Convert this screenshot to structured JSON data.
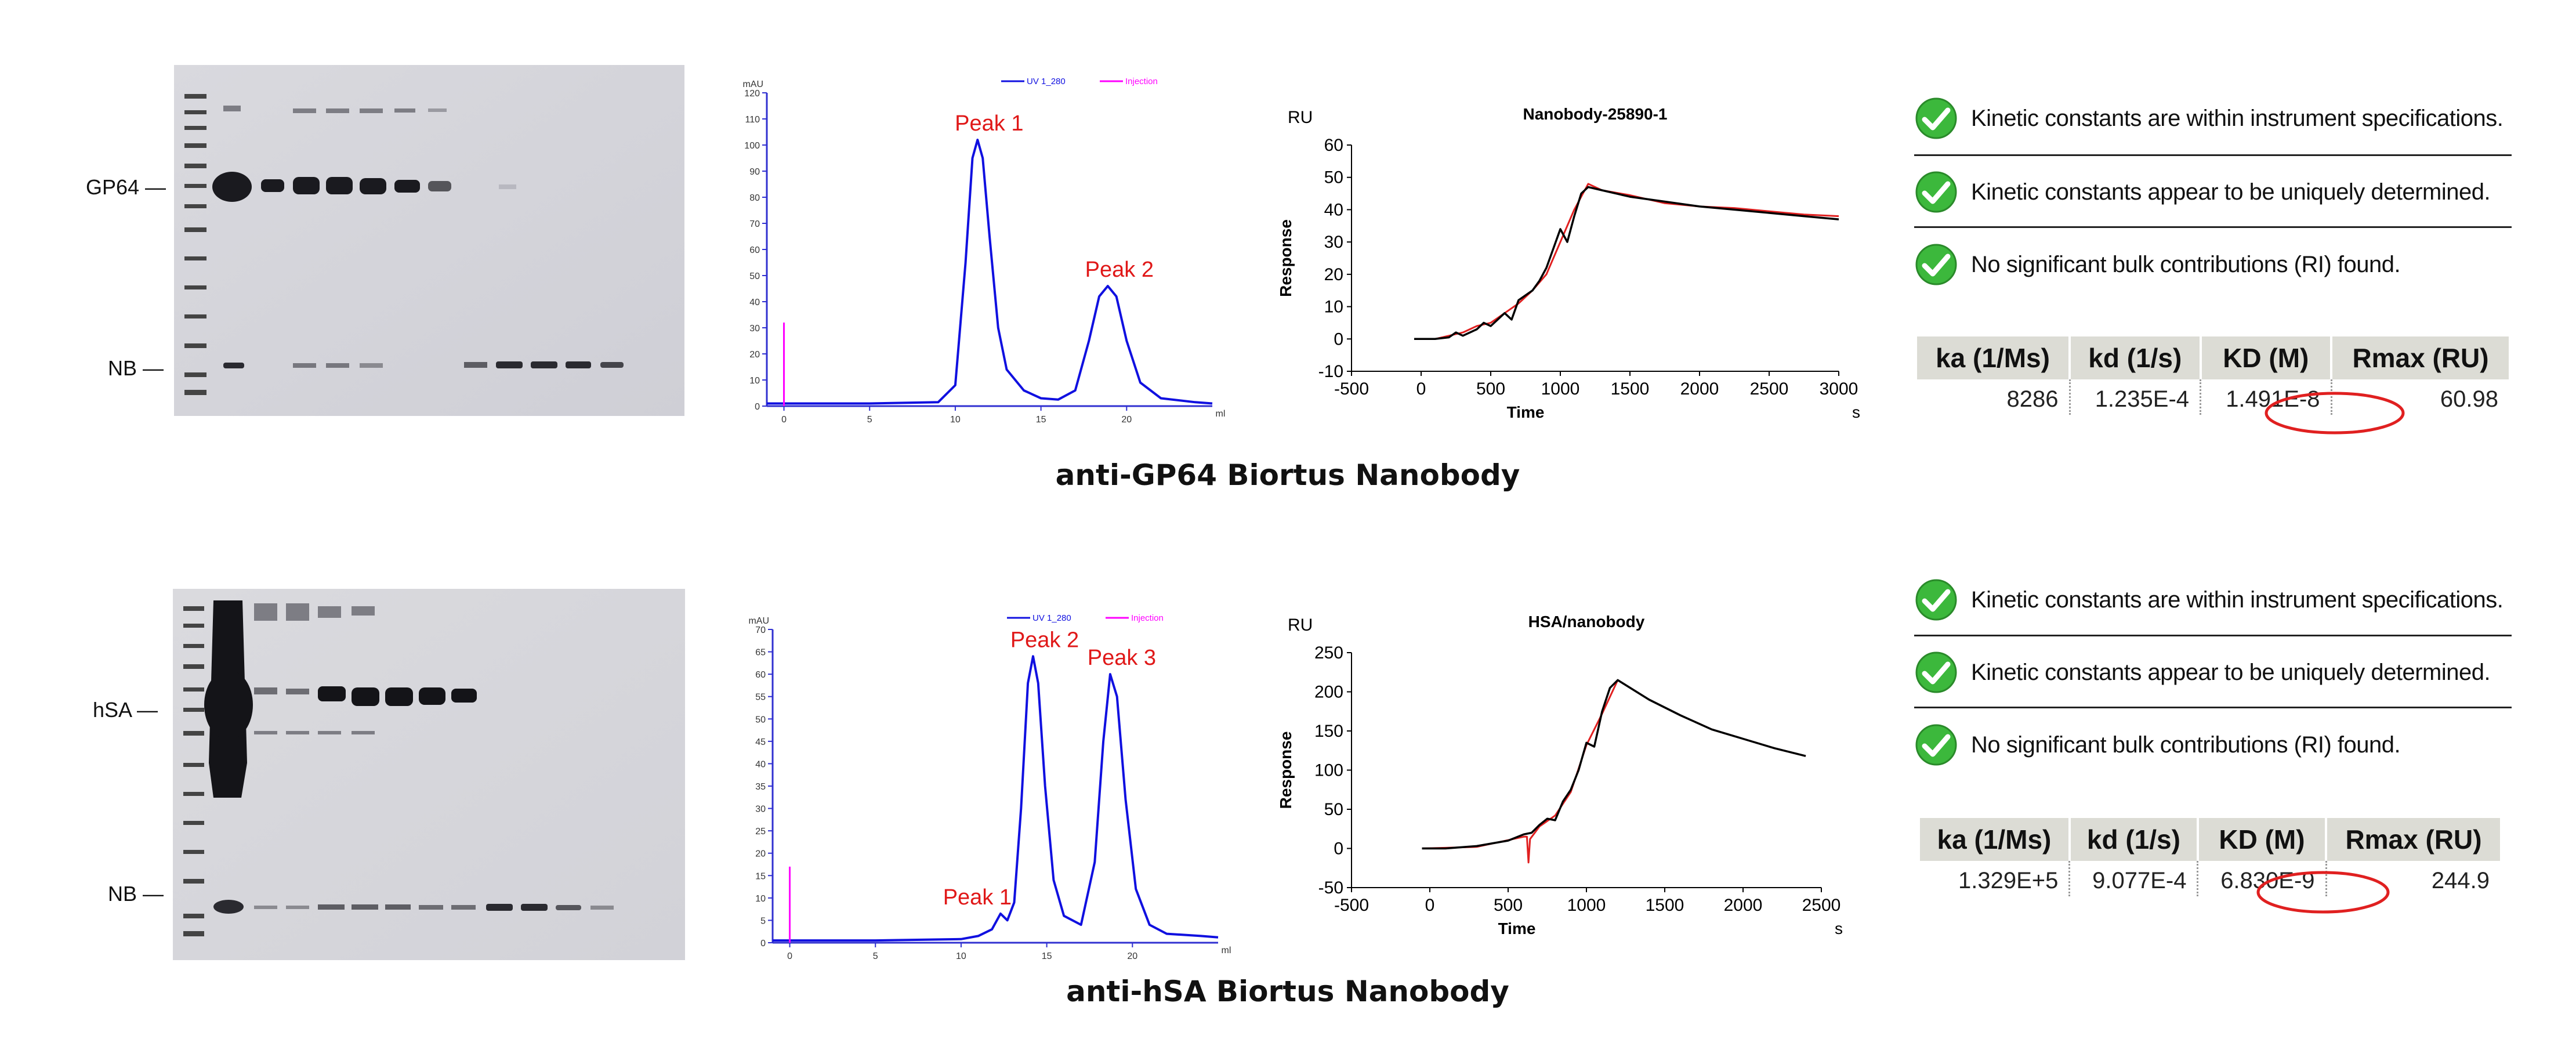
{
  "panels": [
    {
      "id": "gp64",
      "gel": {
        "band_labels": [
          "GP64 —",
          "NB —"
        ]
      },
      "sec": {
        "legend": [
          "UV 1_280",
          "Injection"
        ],
        "ylabel": "mAU",
        "xlabel": "ml",
        "peaks": [
          "Peak 1",
          "Peak 2"
        ]
      },
      "spr": {
        "title": "Nanobody-25890-1",
        "ylabel_unit": "RU",
        "ylabel": "Response",
        "xlabel": "Time",
        "xunit": "s"
      },
      "checks": [
        "Kinetic constants are within instrument specifications.",
        "Kinetic constants appear to be uniquely determined.",
        "No significant bulk contributions (RI) found."
      ],
      "table": {
        "headers": [
          "ka (1/Ms)",
          "kd (1/s)",
          "KD (M)",
          "Rmax (RU)"
        ],
        "values": [
          "8286",
          "1.235E-4",
          "1.491E-8",
          "60.98"
        ]
      },
      "caption": "anti-GP64 Biortus Nanobody"
    },
    {
      "id": "hsa",
      "gel": {
        "band_labels": [
          "hSA —",
          "NB —"
        ]
      },
      "sec": {
        "legend": [
          "UV 1_280",
          "Injection"
        ],
        "ylabel": "mAU",
        "xlabel": "ml",
        "peaks": [
          "Peak 1",
          "Peak 2",
          "Peak 3"
        ]
      },
      "spr": {
        "title": "HSA/nanobody",
        "ylabel_unit": "RU",
        "ylabel": "Response",
        "xlabel": "Time",
        "xunit": "s"
      },
      "checks": [
        "Kinetic constants are within instrument specifications.",
        "Kinetic constants appear to be uniquely determined.",
        "No significant bulk contributions (RI) found."
      ],
      "table": {
        "headers": [
          "ka (1/Ms)",
          "kd (1/s)",
          "KD (M)",
          "Rmax (RU)"
        ],
        "values": [
          "1.329E+5",
          "9.077E-4",
          "6.830E-9",
          "244.9"
        ]
      },
      "caption": "anti-hSA Biortus Nanobody"
    }
  ],
  "chart_data": [
    {
      "type": "line",
      "panel": "gp64-sec",
      "ylabel": "mAU",
      "xlabel": "ml",
      "xlim": [
        -1,
        25
      ],
      "ylim": [
        0,
        120
      ],
      "xticks": [
        0,
        5,
        10,
        15,
        20
      ],
      "yticks": [
        0,
        10,
        20,
        30,
        40,
        50,
        60,
        70,
        80,
        90,
        100,
        110,
        120
      ],
      "series": [
        {
          "name": "UV 1_280",
          "color": "#1010e0",
          "x": [
            -1,
            0,
            5,
            9,
            10,
            10.6,
            11.0,
            11.3,
            11.6,
            12.0,
            12.5,
            13,
            14,
            15,
            16,
            17,
            17.8,
            18.4,
            18.9,
            19.4,
            20.0,
            20.8,
            22,
            24,
            25
          ],
          "y": [
            1,
            1,
            1,
            1.5,
            8,
            55,
            95,
            102,
            95,
            65,
            30,
            14,
            6,
            3,
            2.5,
            6,
            25,
            42,
            46,
            42,
            25,
            9,
            3,
            1.5,
            1
          ]
        },
        {
          "name": "Injection",
          "color": "#ff00ff",
          "x": [
            0,
            0
          ],
          "y": [
            0,
            32
          ]
        }
      ],
      "annotations": [
        {
          "text": "Peak 1",
          "x": 11.3,
          "y": 102
        },
        {
          "text": "Peak 2",
          "x": 18.9,
          "y": 46
        }
      ]
    },
    {
      "type": "line",
      "panel": "gp64-spr",
      "title": "Nanobody-25890-1",
      "ylabel": "Response",
      "xlabel": "Time",
      "xlim": [
        -500,
        3000
      ],
      "ylim": [
        -10,
        60
      ],
      "xticks": [
        -500,
        0,
        500,
        1000,
        1500,
        2000,
        2500,
        3000
      ],
      "yticks": [
        -10,
        0,
        10,
        20,
        30,
        40,
        50,
        60
      ],
      "series": [
        {
          "name": "measured",
          "color": "#000000",
          "x": [
            -50,
            100,
            200,
            250,
            300,
            400,
            450,
            500,
            600,
            650,
            700,
            800,
            850,
            900,
            950,
            1000,
            1050,
            1100,
            1150,
            1200,
            1300,
            1500,
            1750,
            2000,
            2250,
            2500,
            2750,
            3000
          ],
          "y": [
            0,
            0,
            0.5,
            2,
            1,
            3,
            5,
            4,
            8,
            6,
            12,
            15,
            18,
            22,
            28,
            34,
            30,
            38,
            45,
            47,
            46,
            44,
            42.5,
            41,
            40,
            39,
            38,
            37
          ]
        },
        {
          "name": "fit",
          "color": "#e02020",
          "x": [
            -50,
            100,
            200,
            300,
            400,
            500,
            600,
            700,
            800,
            900,
            1000,
            1100,
            1200,
            1300,
            1500,
            1750,
            2000,
            2250,
            2500,
            2750,
            3000
          ],
          "y": [
            0,
            0,
            1,
            2,
            4,
            5,
            8,
            11,
            15,
            20,
            30,
            40,
            48,
            46,
            44.5,
            42,
            41,
            40.5,
            39.5,
            38.5,
            38
          ]
        }
      ]
    },
    {
      "type": "line",
      "panel": "hsa-sec",
      "ylabel": "mAU",
      "xlabel": "ml",
      "xlim": [
        -1,
        25
      ],
      "ylim": [
        0,
        70
      ],
      "xticks": [
        0,
        5,
        10,
        15,
        20
      ],
      "yticks": [
        0,
        5,
        10,
        15,
        20,
        25,
        30,
        35,
        40,
        45,
        50,
        55,
        60,
        65,
        70
      ],
      "series": [
        {
          "name": "UV 1_280",
          "color": "#1010e0",
          "x": [
            -1,
            0,
            5,
            10,
            11,
            11.8,
            12.3,
            12.7,
            13.1,
            13.5,
            13.9,
            14.2,
            14.5,
            14.9,
            15.4,
            16,
            17,
            17.8,
            18.3,
            18.7,
            19.1,
            19.6,
            20.2,
            21,
            22,
            24,
            25
          ],
          "y": [
            0.5,
            0.5,
            0.5,
            0.8,
            1.5,
            3,
            6.5,
            5,
            9,
            30,
            58,
            64,
            58,
            35,
            14,
            6,
            4,
            18,
            45,
            60,
            55,
            32,
            12,
            4,
            2,
            1.5,
            1.2
          ]
        },
        {
          "name": "Injection",
          "color": "#ff00ff",
          "x": [
            0,
            0
          ],
          "y": [
            0,
            17
          ]
        }
      ],
      "annotations": [
        {
          "text": "Peak 1",
          "x": 12.3,
          "y": 6.5
        },
        {
          "text": "Peak 2",
          "x": 14.2,
          "y": 64
        },
        {
          "text": "Peak 3",
          "x": 18.7,
          "y": 60
        }
      ]
    },
    {
      "type": "line",
      "panel": "hsa-spr",
      "title": "HSA/nanobody",
      "ylabel": "Response",
      "xlabel": "Time",
      "xlim": [
        -500,
        2500
      ],
      "ylim": [
        -50,
        250
      ],
      "xticks": [
        -500,
        0,
        500,
        1000,
        1500,
        2000,
        2500
      ],
      "yticks": [
        -50,
        0,
        50,
        100,
        150,
        200,
        250
      ],
      "series": [
        {
          "name": "measured",
          "color": "#000000",
          "x": [
            -50,
            100,
            300,
            500,
            600,
            650,
            700,
            750,
            800,
            850,
            900,
            950,
            1000,
            1050,
            1100,
            1150,
            1200,
            1400,
            1600,
            1800,
            2000,
            2200,
            2400
          ],
          "y": [
            0,
            0,
            3,
            10,
            18,
            20,
            30,
            38,
            36,
            60,
            75,
            100,
            135,
            130,
            175,
            205,
            215,
            190,
            170,
            152,
            140,
            128,
            118
          ]
        },
        {
          "name": "fit",
          "color": "#e02020",
          "x": [
            -50,
            300,
            600,
            620,
            630,
            640,
            700,
            800,
            900,
            1000,
            1100,
            1200,
            1400,
            1600,
            1800,
            2000,
            2200,
            2400
          ],
          "y": [
            0,
            2,
            15,
            15,
            -18,
            12,
            28,
            42,
            72,
            132,
            172,
            215,
            190,
            170,
            152,
            140,
            128,
            118
          ]
        }
      ]
    }
  ]
}
